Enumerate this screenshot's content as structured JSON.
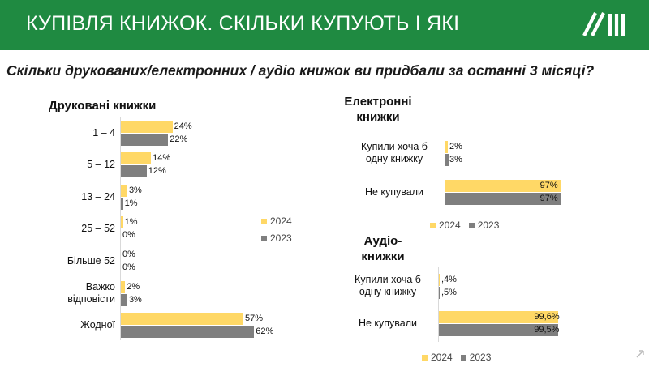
{
  "header": {
    "title": "КУПІВЛЯ КНИЖОК. СКІЛЬКИ КУПУЮТЬ І ЯКІ",
    "accent": "#1f8a41"
  },
  "question": "Скільки друкованих/електронних / аудіо книжок ви придбали за останні 3 місяці?",
  "colors": {
    "y2024": "#ffd866",
    "y2023": "#7f7f7f"
  },
  "chart_data": [
    {
      "type": "bar",
      "orientation": "horizontal",
      "title": "Друковані книжки",
      "categories": [
        "1 – 4",
        "5 – 12",
        "13 – 24",
        "25 – 52",
        "Більше 52",
        "Важко відповісти",
        "Жодної"
      ],
      "series": [
        {
          "name": "2024",
          "values": [
            24,
            14,
            3,
            1,
            0,
            2,
            57
          ],
          "labels": [
            "24%",
            "14%",
            "3%",
            "1%",
            "0%",
            "2%",
            "57%"
          ]
        },
        {
          "name": "2023",
          "values": [
            22,
            12,
            1,
            0,
            0,
            3,
            62
          ],
          "labels": [
            "22%",
            "12%",
            "1%",
            "0%",
            "0%",
            "3%",
            "62%"
          ]
        }
      ],
      "legend": [
        "2024",
        "2023"
      ],
      "legend_position": "right"
    },
    {
      "type": "bar",
      "orientation": "horizontal",
      "title": "Електронні книжки",
      "categories": [
        "Купили хоча б одну книжку",
        "Не купували"
      ],
      "series": [
        {
          "name": "2024",
          "values": [
            2,
            97
          ],
          "labels": [
            "2%",
            "97%"
          ]
        },
        {
          "name": "2023",
          "values": [
            3,
            97
          ],
          "labels": [
            "3%",
            "97%"
          ]
        }
      ],
      "legend": [
        "2024",
        "2023"
      ],
      "legend_position": "bottom"
    },
    {
      "type": "bar",
      "orientation": "horizontal",
      "title": "Аудіо-книжки",
      "categories": [
        "Купили хоча б одну книжку",
        "Не купували"
      ],
      "series": [
        {
          "name": "2024",
          "values": [
            0.4,
            99.6
          ],
          "labels": [
            ",4%",
            "99,6%"
          ]
        },
        {
          "name": "2023",
          "values": [
            0.5,
            99.5
          ],
          "labels": [
            ",5%",
            "99,5%"
          ]
        }
      ],
      "legend": [
        "2024",
        "2023"
      ],
      "legend_position": "bottom"
    }
  ]
}
